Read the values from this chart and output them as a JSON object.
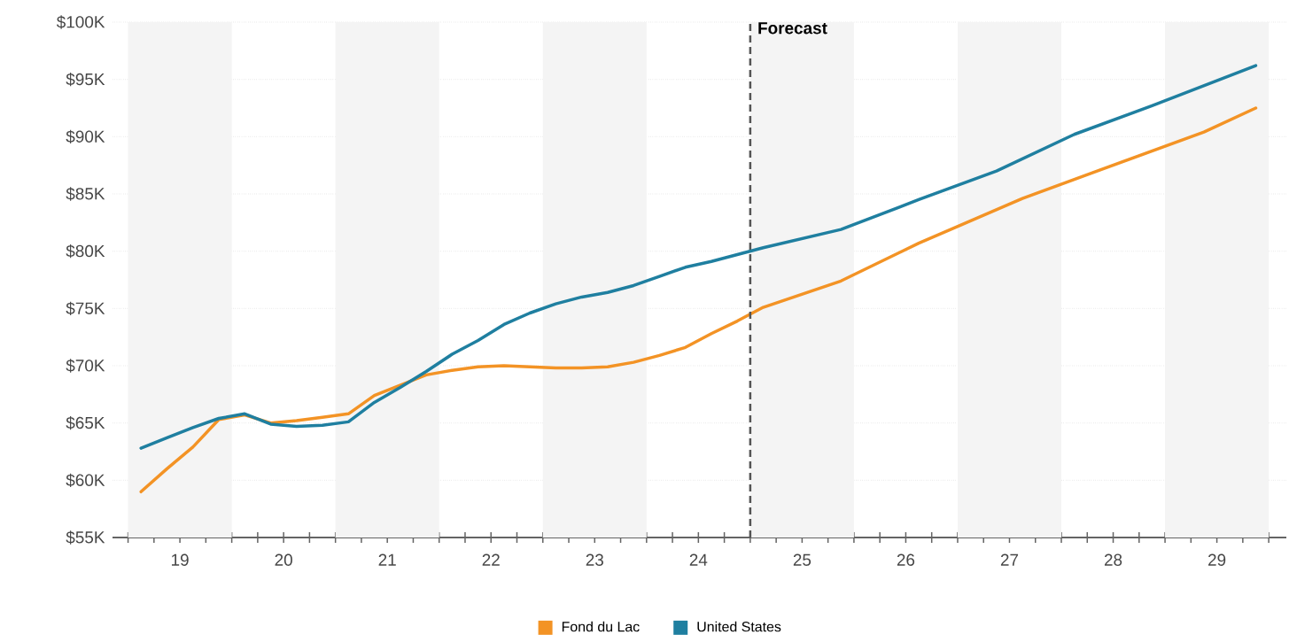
{
  "chart_data": {
    "type": "line",
    "xlim": [
      18.35,
      29.67
    ],
    "xticks": [
      {
        "value": 18.5,
        "label": null
      },
      {
        "value": 18.75,
        "label": null
      },
      19,
      {
        "value": 19.25,
        "label": null
      },
      {
        "value": 19.5,
        "label": null
      },
      {
        "value": 19.75,
        "label": null
      },
      20,
      {
        "value": 20.25,
        "label": null
      },
      {
        "value": 20.5,
        "label": null
      },
      {
        "value": 20.75,
        "label": null
      },
      21,
      {
        "value": 21.25,
        "label": null
      },
      {
        "value": 21.5,
        "label": null
      },
      {
        "value": 21.75,
        "label": null
      },
      22,
      {
        "value": 22.25,
        "label": null
      },
      {
        "value": 22.5,
        "label": null
      },
      {
        "value": 22.75,
        "label": null
      },
      23,
      {
        "value": 23.25,
        "label": null
      },
      {
        "value": 23.5,
        "label": null
      },
      {
        "value": 23.75,
        "label": null
      },
      24,
      {
        "value": 24.25,
        "label": null
      },
      {
        "value": 24.5,
        "label": null
      },
      {
        "value": 24.75,
        "label": null
      },
      25,
      {
        "value": 25.25,
        "label": null
      },
      {
        "value": 25.5,
        "label": null
      },
      {
        "value": 25.75,
        "label": null
      },
      26,
      {
        "value": 26.25,
        "label": null
      },
      {
        "value": 26.5,
        "label": null
      },
      {
        "value": 26.75,
        "label": null
      },
      27,
      {
        "value": 27.25,
        "label": null
      },
      {
        "value": 27.5,
        "label": null
      },
      {
        "value": 27.75,
        "label": null
      },
      28,
      {
        "value": 28.25,
        "label": null
      },
      {
        "value": 28.5,
        "label": null
      },
      {
        "value": 28.75,
        "label": null
      },
      29,
      {
        "value": 29.25,
        "label": null
      },
      {
        "value": 29.5,
        "label": null
      }
    ],
    "ylim": [
      55,
      100
    ],
    "yticks": [
      {
        "value": 55,
        "label": "$55K"
      },
      {
        "value": 60,
        "label": "$60K"
      },
      {
        "value": 65,
        "label": "$65K"
      },
      {
        "value": 70,
        "label": "$70K"
      },
      {
        "value": 75,
        "label": "$75K"
      },
      {
        "value": 80,
        "label": "$80K"
      },
      {
        "value": 85,
        "label": "$85K"
      },
      {
        "value": 90,
        "label": "$90K"
      },
      {
        "value": 95,
        "label": "$95K"
      },
      {
        "value": 100,
        "label": "$100K"
      }
    ],
    "grid": "y",
    "legend": "bottom",
    "bands": [
      {
        "axis": "x",
        "from": 18.5,
        "to": 19.5,
        "color": "#f4f4f4"
      },
      {
        "axis": "x",
        "from": 20.5,
        "to": 21.5,
        "color": "#f4f4f4"
      },
      {
        "axis": "x",
        "from": 22.5,
        "to": 23.5,
        "color": "#f4f4f4"
      },
      {
        "axis": "x",
        "from": 24.5,
        "to": 25.5,
        "color": "#f4f4f4"
      },
      {
        "axis": "x",
        "from": 26.5,
        "to": 27.5,
        "color": "#f4f4f4"
      },
      {
        "axis": "x",
        "from": 28.5,
        "to": 29.5,
        "color": "#f4f4f4"
      }
    ],
    "ref_lines": [
      {
        "axis": "x",
        "value": 24.5,
        "label": "Forecast",
        "color": "#555555",
        "line_style": "dashed"
      }
    ],
    "series": [
      {
        "name": "Fond du Lac",
        "color": "#f39325",
        "x": [
          18.625,
          18.875,
          19.125,
          19.375,
          19.625,
          19.875,
          20.125,
          20.375,
          20.625,
          20.875,
          21.125,
          21.375,
          21.625,
          21.875,
          22.125,
          22.375,
          22.625,
          22.875,
          23.125,
          23.375,
          23.625,
          23.875,
          24.125,
          24.375,
          24.625,
          25.375,
          26.125,
          27.125,
          27.875,
          28.875,
          29.375
        ],
        "values": [
          59.0,
          61.0,
          62.9,
          65.3,
          65.7,
          65.0,
          65.2,
          65.5,
          65.8,
          67.4,
          68.3,
          69.2,
          69.6,
          69.9,
          70.0,
          69.9,
          69.8,
          69.8,
          69.9,
          70.3,
          70.9,
          71.6,
          72.8,
          73.9,
          75.1,
          77.4,
          80.7,
          84.6,
          87.1,
          90.4,
          92.5
        ]
      },
      {
        "name": "United States",
        "color": "#1f7fa0",
        "x": [
          18.625,
          18.875,
          19.125,
          19.375,
          19.625,
          19.875,
          20.125,
          20.375,
          20.625,
          20.875,
          21.125,
          21.375,
          21.625,
          21.875,
          22.125,
          22.375,
          22.625,
          22.875,
          23.125,
          23.375,
          23.625,
          23.875,
          24.125,
          24.375,
          24.625,
          25.375,
          26.125,
          26.875,
          27.625,
          28.375,
          29.375
        ],
        "values": [
          62.8,
          63.7,
          64.6,
          65.4,
          65.8,
          64.9,
          64.7,
          64.8,
          65.1,
          66.8,
          68.1,
          69.5,
          71.0,
          72.2,
          73.6,
          74.6,
          75.4,
          76.0,
          76.4,
          77.0,
          77.8,
          78.6,
          79.1,
          79.7,
          80.3,
          81.9,
          84.5,
          87.0,
          90.2,
          92.7,
          96.2
        ]
      }
    ]
  }
}
